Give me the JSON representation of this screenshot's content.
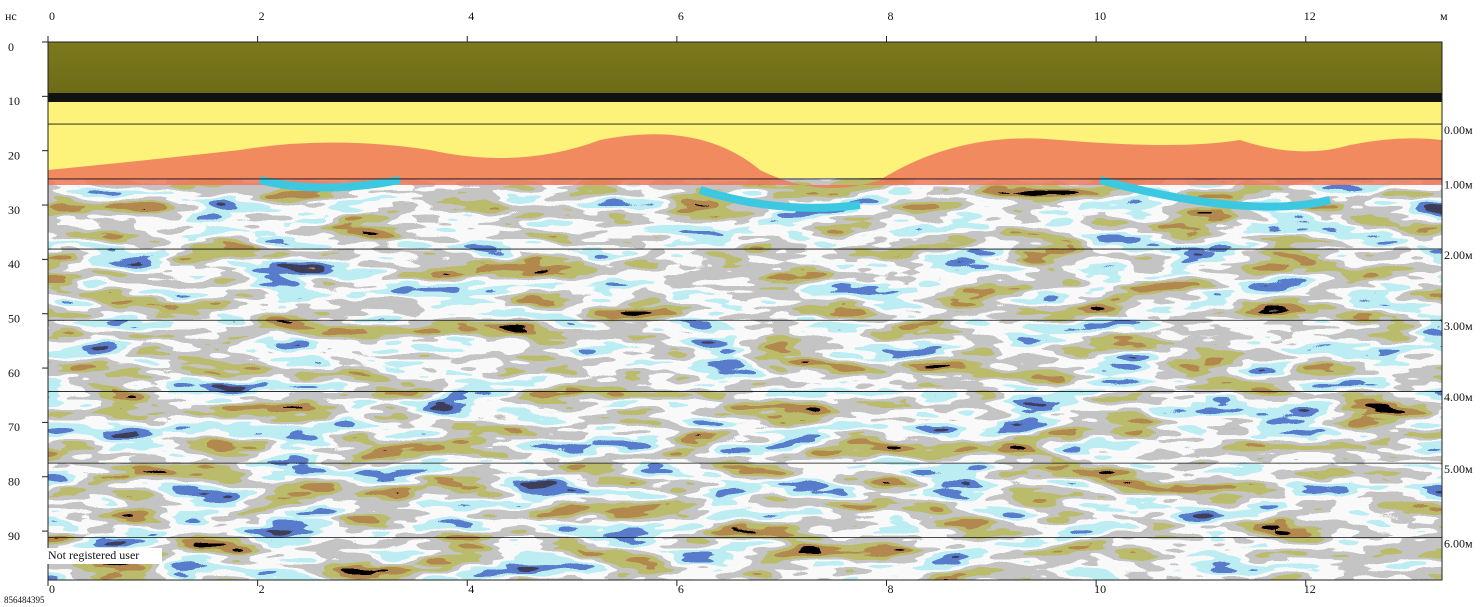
{
  "chart_data": {
    "type": "radargram",
    "x_unit": "м",
    "y_unit": "нс",
    "xlim": [
      0,
      13.3
    ],
    "xticks": [
      0,
      2,
      4,
      6,
      8,
      10,
      12
    ],
    "ylim": [
      0,
      99
    ],
    "yticks": [
      0,
      10,
      20,
      30,
      40,
      50,
      60,
      70,
      80,
      90
    ],
    "depth_ticks": [
      {
        "value": 15.1,
        "label": "0.00м"
      },
      {
        "value": 25.2,
        "label": "1.00м"
      },
      {
        "value": 38.1,
        "label": "2.00м"
      },
      {
        "value": 51.2,
        "label": "3.00м"
      },
      {
        "value": 64.3,
        "label": "4.00м"
      },
      {
        "value": 77.5,
        "label": "5.00м"
      },
      {
        "value": 91.2,
        "label": "6.00м"
      }
    ],
    "watermark": "Not registered user",
    "footer": "856484395"
  }
}
